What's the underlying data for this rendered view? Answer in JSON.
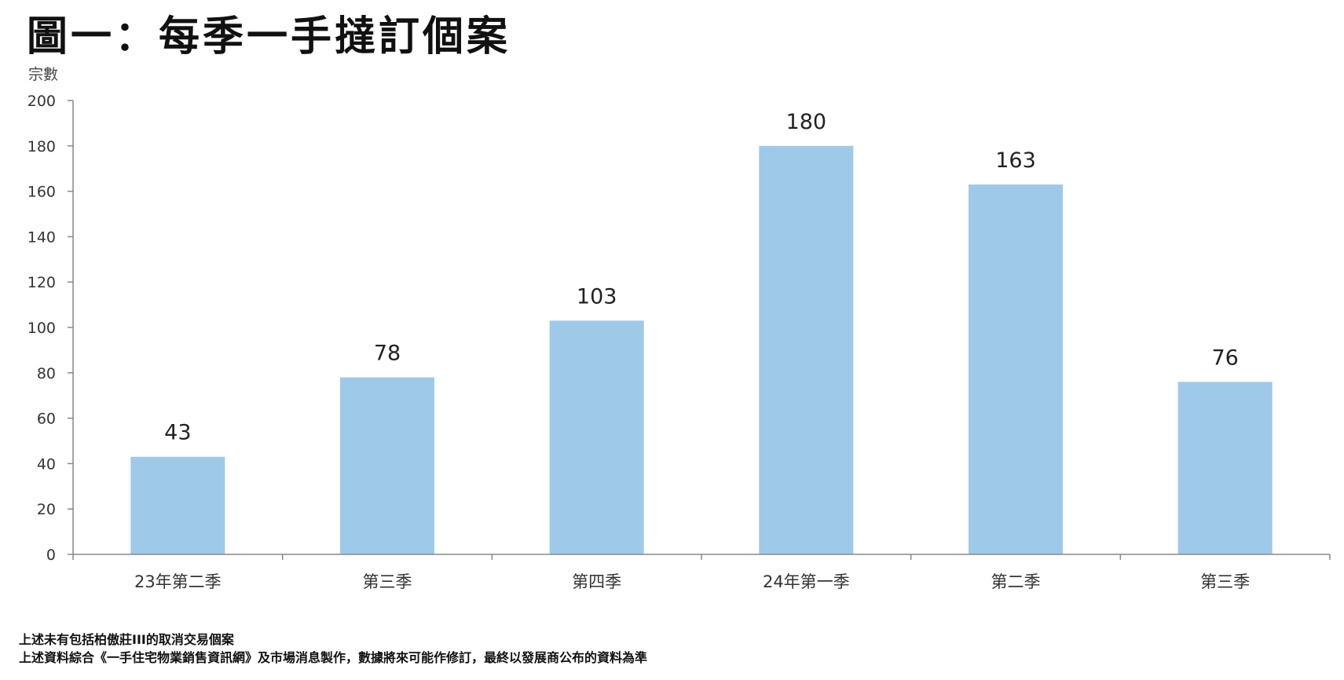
{
  "title": "圖一：每季一手撻訂個案",
  "chart_data": {
    "type": "bar",
    "title": "圖一：每季一手撻訂個案",
    "ylabel": "宗數",
    "xlabel": "",
    "ylim": [
      0,
      200
    ],
    "yticks": [
      0,
      20,
      40,
      60,
      80,
      100,
      120,
      140,
      160,
      180,
      200
    ],
    "categories": [
      "23年第二季",
      "第三季",
      "第四季",
      "24年第一季",
      "第二季",
      "第三季"
    ],
    "values": [
      43,
      78,
      103,
      180,
      163,
      76
    ],
    "data_labels": [
      "43",
      "78",
      "103",
      "180",
      "163",
      "76"
    ],
    "bar_color": "#9fc9e8",
    "grid": false,
    "legend": "none"
  },
  "notes": [
    "上述未有包括柏傲莊III的取消交易個案",
    "上述資料綜合《一手住宅物業銷售資訊網》及市場消息製作，數據將來可能作修訂，最終以發展商公布的資料為準"
  ]
}
